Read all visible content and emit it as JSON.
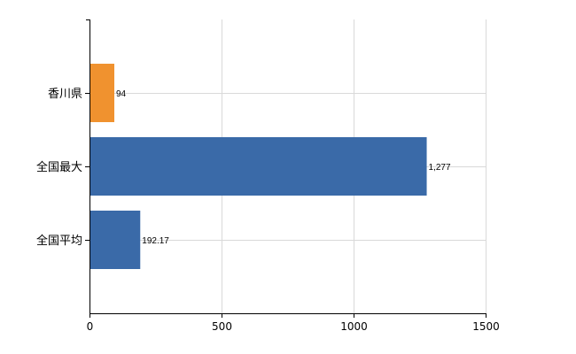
{
  "chart_data": {
    "type": "bar",
    "orientation": "horizontal",
    "categories": [
      "香川県",
      "全国最大",
      "全国平均"
    ],
    "values": [
      94,
      1277,
      192.17
    ],
    "value_labels": [
      "94",
      "1,277",
      "192.17"
    ],
    "bar_colors": [
      "#f0922f",
      "#3a6aa8",
      "#3a6aa8"
    ],
    "xlim": [
      0,
      1500
    ],
    "xticks": [
      0,
      500,
      1000,
      1500
    ],
    "xtick_labels": [
      "0",
      "500",
      "1000",
      "1500"
    ],
    "grid": true,
    "legend": "none",
    "title": "",
    "xlabel": "",
    "ylabel": ""
  }
}
